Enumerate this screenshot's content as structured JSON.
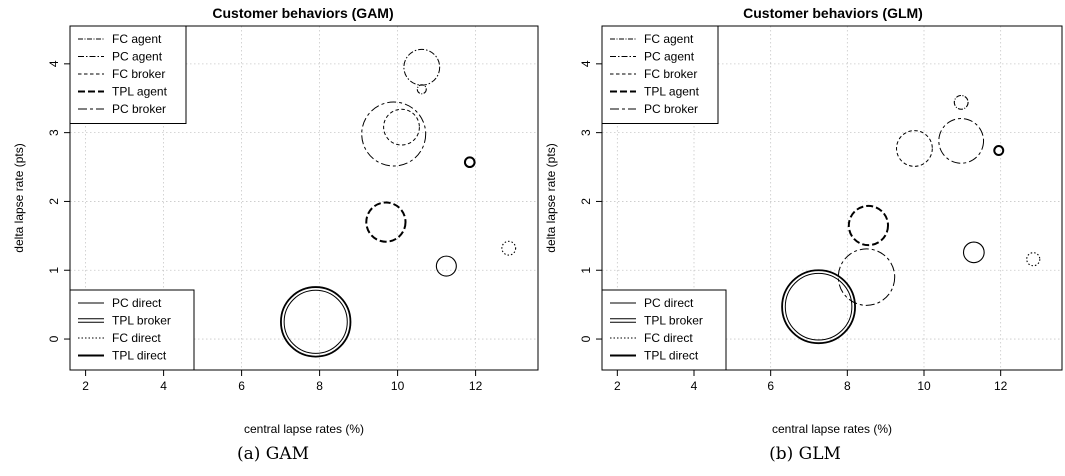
{
  "chart_data": [
    {
      "type": "scatter",
      "title": "Customer behaviors (GAM)",
      "xlabel": "central lapse rates (%)",
      "ylabel": "delta lapse rate (pts)",
      "xlim": [
        1.6,
        13.6
      ],
      "ylim": [
        -0.45,
        4.55
      ],
      "xticks": [
        "2",
        "4",
        "6",
        "8",
        "10",
        "12"
      ],
      "yticks": [
        "0",
        "1",
        "2",
        "3",
        "4"
      ],
      "grid": true,
      "legend_top": [
        "FC agent",
        "PC agent",
        "FC broker",
        "TPL agent",
        "PC broker"
      ],
      "legend_bottom": [
        "PC direct",
        "TPL broker",
        "FC direct",
        "TPL direct"
      ],
      "points": [
        {
          "name": "FC agent",
          "x": 10.62,
          "y": 3.63,
          "size": 0.13
        },
        {
          "name": "PC agent",
          "x": 10.62,
          "y": 3.95,
          "size": 0.52
        },
        {
          "name": "FC broker",
          "x": 10.1,
          "y": 3.08,
          "size": 0.52
        },
        {
          "name": "TPL agent",
          "x": 9.7,
          "y": 1.7,
          "size": 0.57
        },
        {
          "name": "PC broker",
          "x": 9.9,
          "y": 2.98,
          "size": 0.93
        },
        {
          "name": "PC direct",
          "x": 7.9,
          "y": 0.25,
          "size": 1.0
        },
        {
          "name": "TPL broker",
          "x": 7.9,
          "y": 0.25,
          "size": 0.97
        },
        {
          "name": "FC direct",
          "x": 12.85,
          "y": 1.32,
          "size": 0.2
        },
        {
          "name": "TPL direct",
          "x": 11.85,
          "y": 2.57,
          "size": 0.14
        },
        {
          "name": "PC direct",
          "x": 11.25,
          "y": 1.06,
          "size": 0.29
        }
      ],
      "caption": "(a) GAM"
    },
    {
      "type": "scatter",
      "title": "Customer behaviors (GLM)",
      "xlabel": "central lapse rates (%)",
      "ylabel": "delta lapse rate (pts)",
      "xlim": [
        1.6,
        13.6
      ],
      "ylim": [
        -0.45,
        4.55
      ],
      "xticks": [
        "2",
        "4",
        "6",
        "8",
        "10",
        "12"
      ],
      "yticks": [
        "0",
        "1",
        "2",
        "3",
        "4"
      ],
      "grid": true,
      "legend_top": [
        "FC agent",
        "PC agent",
        "FC broker",
        "TPL agent",
        "PC broker"
      ],
      "legend_bottom": [
        "PC direct",
        "TPL broker",
        "FC direct",
        "TPL direct"
      ],
      "points": [
        {
          "name": "FC agent",
          "x": 10.97,
          "y": 3.44,
          "size": 0.2
        },
        {
          "name": "FC broker",
          "x": 9.75,
          "y": 2.77,
          "size": 0.52
        },
        {
          "name": "PC broker",
          "x": 10.97,
          "y": 2.88,
          "size": 0.65
        },
        {
          "name": "TPL agent",
          "x": 8.55,
          "y": 1.65,
          "size": 0.57
        },
        {
          "name": "PC broker",
          "x": 8.5,
          "y": 0.9,
          "size": 0.82
        },
        {
          "name": "PC direct",
          "x": 7.25,
          "y": 0.47,
          "size": 1.05
        },
        {
          "name": "TPL broker",
          "x": 7.25,
          "y": 0.47,
          "size": 1.02
        },
        {
          "name": "FC direct",
          "x": 12.85,
          "y": 1.16,
          "size": 0.19
        },
        {
          "name": "TPL direct",
          "x": 11.95,
          "y": 2.74,
          "size": 0.13
        },
        {
          "name": "PC direct",
          "x": 11.3,
          "y": 1.26,
          "size": 0.3
        }
      ],
      "caption": "(b) GLM"
    }
  ]
}
